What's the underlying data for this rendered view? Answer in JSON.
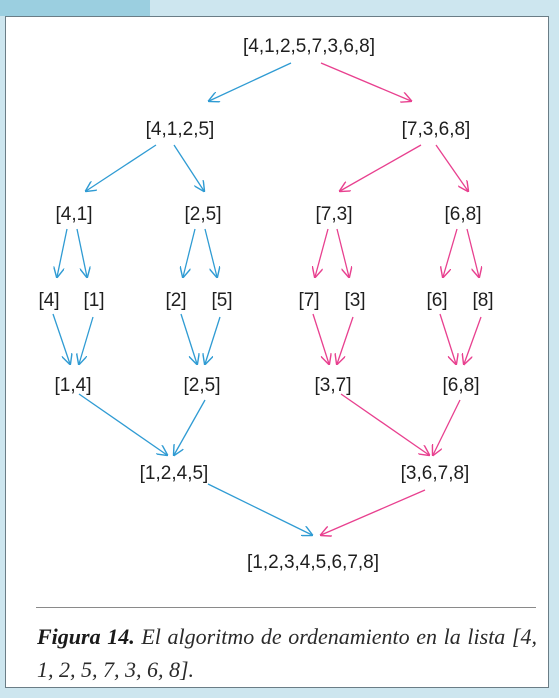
{
  "nodes": {
    "root": "[4,1,2,5,7,3,6,8]",
    "l": "[4,1,2,5]",
    "r": "[7,3,6,8]",
    "ll": "[4,1]",
    "lr": "[2,5]",
    "rl": "[7,3]",
    "rr": "[6,8]",
    "a4": "[4]",
    "a1": "[1]",
    "a2": "[2]",
    "a5": "[5]",
    "a7": "[7]",
    "a3": "[3]",
    "a6": "[6]",
    "a8": "[8]",
    "m14": "[1,4]",
    "m25": "[2,5]",
    "m37": "[3,7]",
    "m68": "[6,8]",
    "m1245": "[1,2,4,5]",
    "m3678": "[3,6,7,8]",
    "final": "[1,2,3,4,5,6,7,8]"
  },
  "colors": {
    "left_arrows": "#2f9bd3",
    "right_arrows": "#e8408f",
    "background": "#cde6ef",
    "tab": "#9bcfe0"
  },
  "caption": {
    "label": "Figura 14.",
    "text": " El algoritmo de ordenamiento en la lista [4, 1, 2, 5, 7, 3,  6, 8]."
  }
}
